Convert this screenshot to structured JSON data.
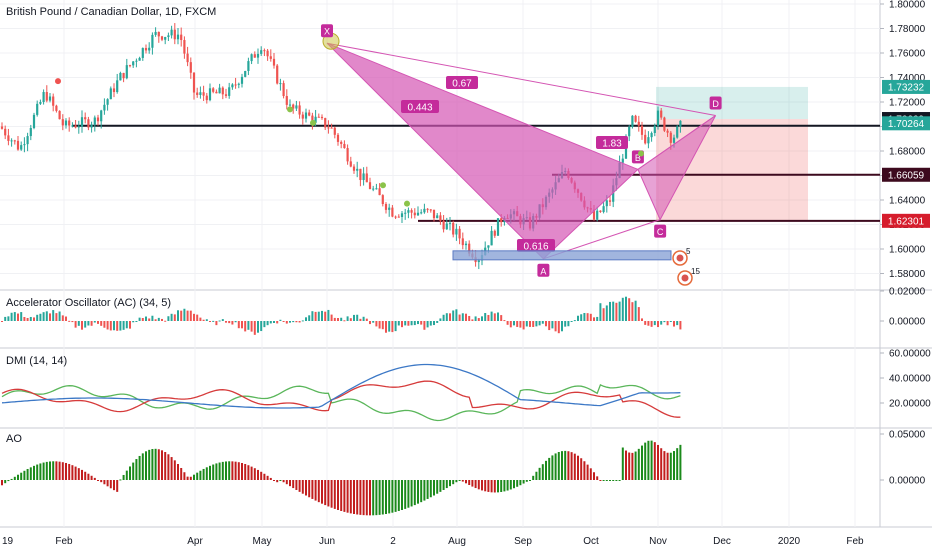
{
  "chart_data": {
    "type": "candlestick",
    "title": "British Pound / Canadian Dollar, 1D, FXCM",
    "x_ticks": [
      "19",
      "Feb",
      "Apr",
      "May",
      "Jun",
      "2",
      "Aug",
      "Sep",
      "Oct",
      "Nov",
      "Dec",
      "2020",
      "Feb"
    ],
    "main_pane": {
      "ylim": [
        1.57,
        1.81
      ],
      "y_ticks": [
        "1.80000",
        "1.78000",
        "1.76000",
        "1.74000",
        "1.72000",
        "1.70000",
        "1.68000",
        "1.66000",
        "1.64000",
        "1.62000",
        "1.60000",
        "1.58000"
      ],
      "price_labels": [
        {
          "value": "1.73232",
          "color": "#26a69a"
        },
        {
          "value": "1.70609",
          "color": "#131722"
        },
        {
          "value": "1.70264",
          "color": "#26a69a"
        },
        {
          "value": "1.66059",
          "color": "#3d0a1e"
        },
        {
          "value": "1.62301",
          "color": "#d61c2c"
        }
      ],
      "horizontal_lines": [
        {
          "value": 1.7006,
          "color": "#131722"
        },
        {
          "value": 1.6606,
          "color": "#3d0a1e"
        },
        {
          "value": 1.623,
          "color": "#3d0a1e"
        },
        {
          "value": 1.6606,
          "color": "#3d0a1e"
        }
      ],
      "harmonic_points": [
        {
          "label": "X",
          "date": "2019-05-01",
          "price": 1.768
        },
        {
          "label": "A",
          "date": "2019-08-10",
          "price": 1.592
        },
        {
          "label": "B",
          "date": "2019-09-22",
          "price": 1.665
        },
        {
          "label": "C",
          "date": "2019-10-02",
          "price": 1.624
        },
        {
          "label": "D",
          "date": "2019-10-28",
          "price": 1.709
        }
      ],
      "ratio_labels": [
        "0.443",
        "0.67",
        "1.83",
        "0.616"
      ],
      "target_box": {
        "entry": 1.7061,
        "target": 1.7323,
        "stop": 1.623
      },
      "event_badges": [
        "5",
        "15"
      ]
    },
    "indicators": [
      {
        "name": "Accelerator Oscillator (AC) (34, 5)",
        "y_ticks": [
          "0.02000",
          "0.00000"
        ]
      },
      {
        "name": "DMI (14, 14)",
        "y_ticks": [
          "60.00000",
          "40.00000",
          "20.00000"
        ]
      },
      {
        "name": "AO",
        "y_ticks": [
          "0.05000",
          "0.00000"
        ]
      }
    ],
    "colors": {
      "up": "#26a69a",
      "down": "#ef5350",
      "pattern_fill": "#d455b3",
      "pattern_label": "#c42b9b",
      "dmi_plus": "#5ab65a",
      "dmi_minus": "#d63b3b",
      "adx": "#3c78c6",
      "ao_up": "#1b8a1b",
      "ao_down": "#c21d1d"
    }
  }
}
